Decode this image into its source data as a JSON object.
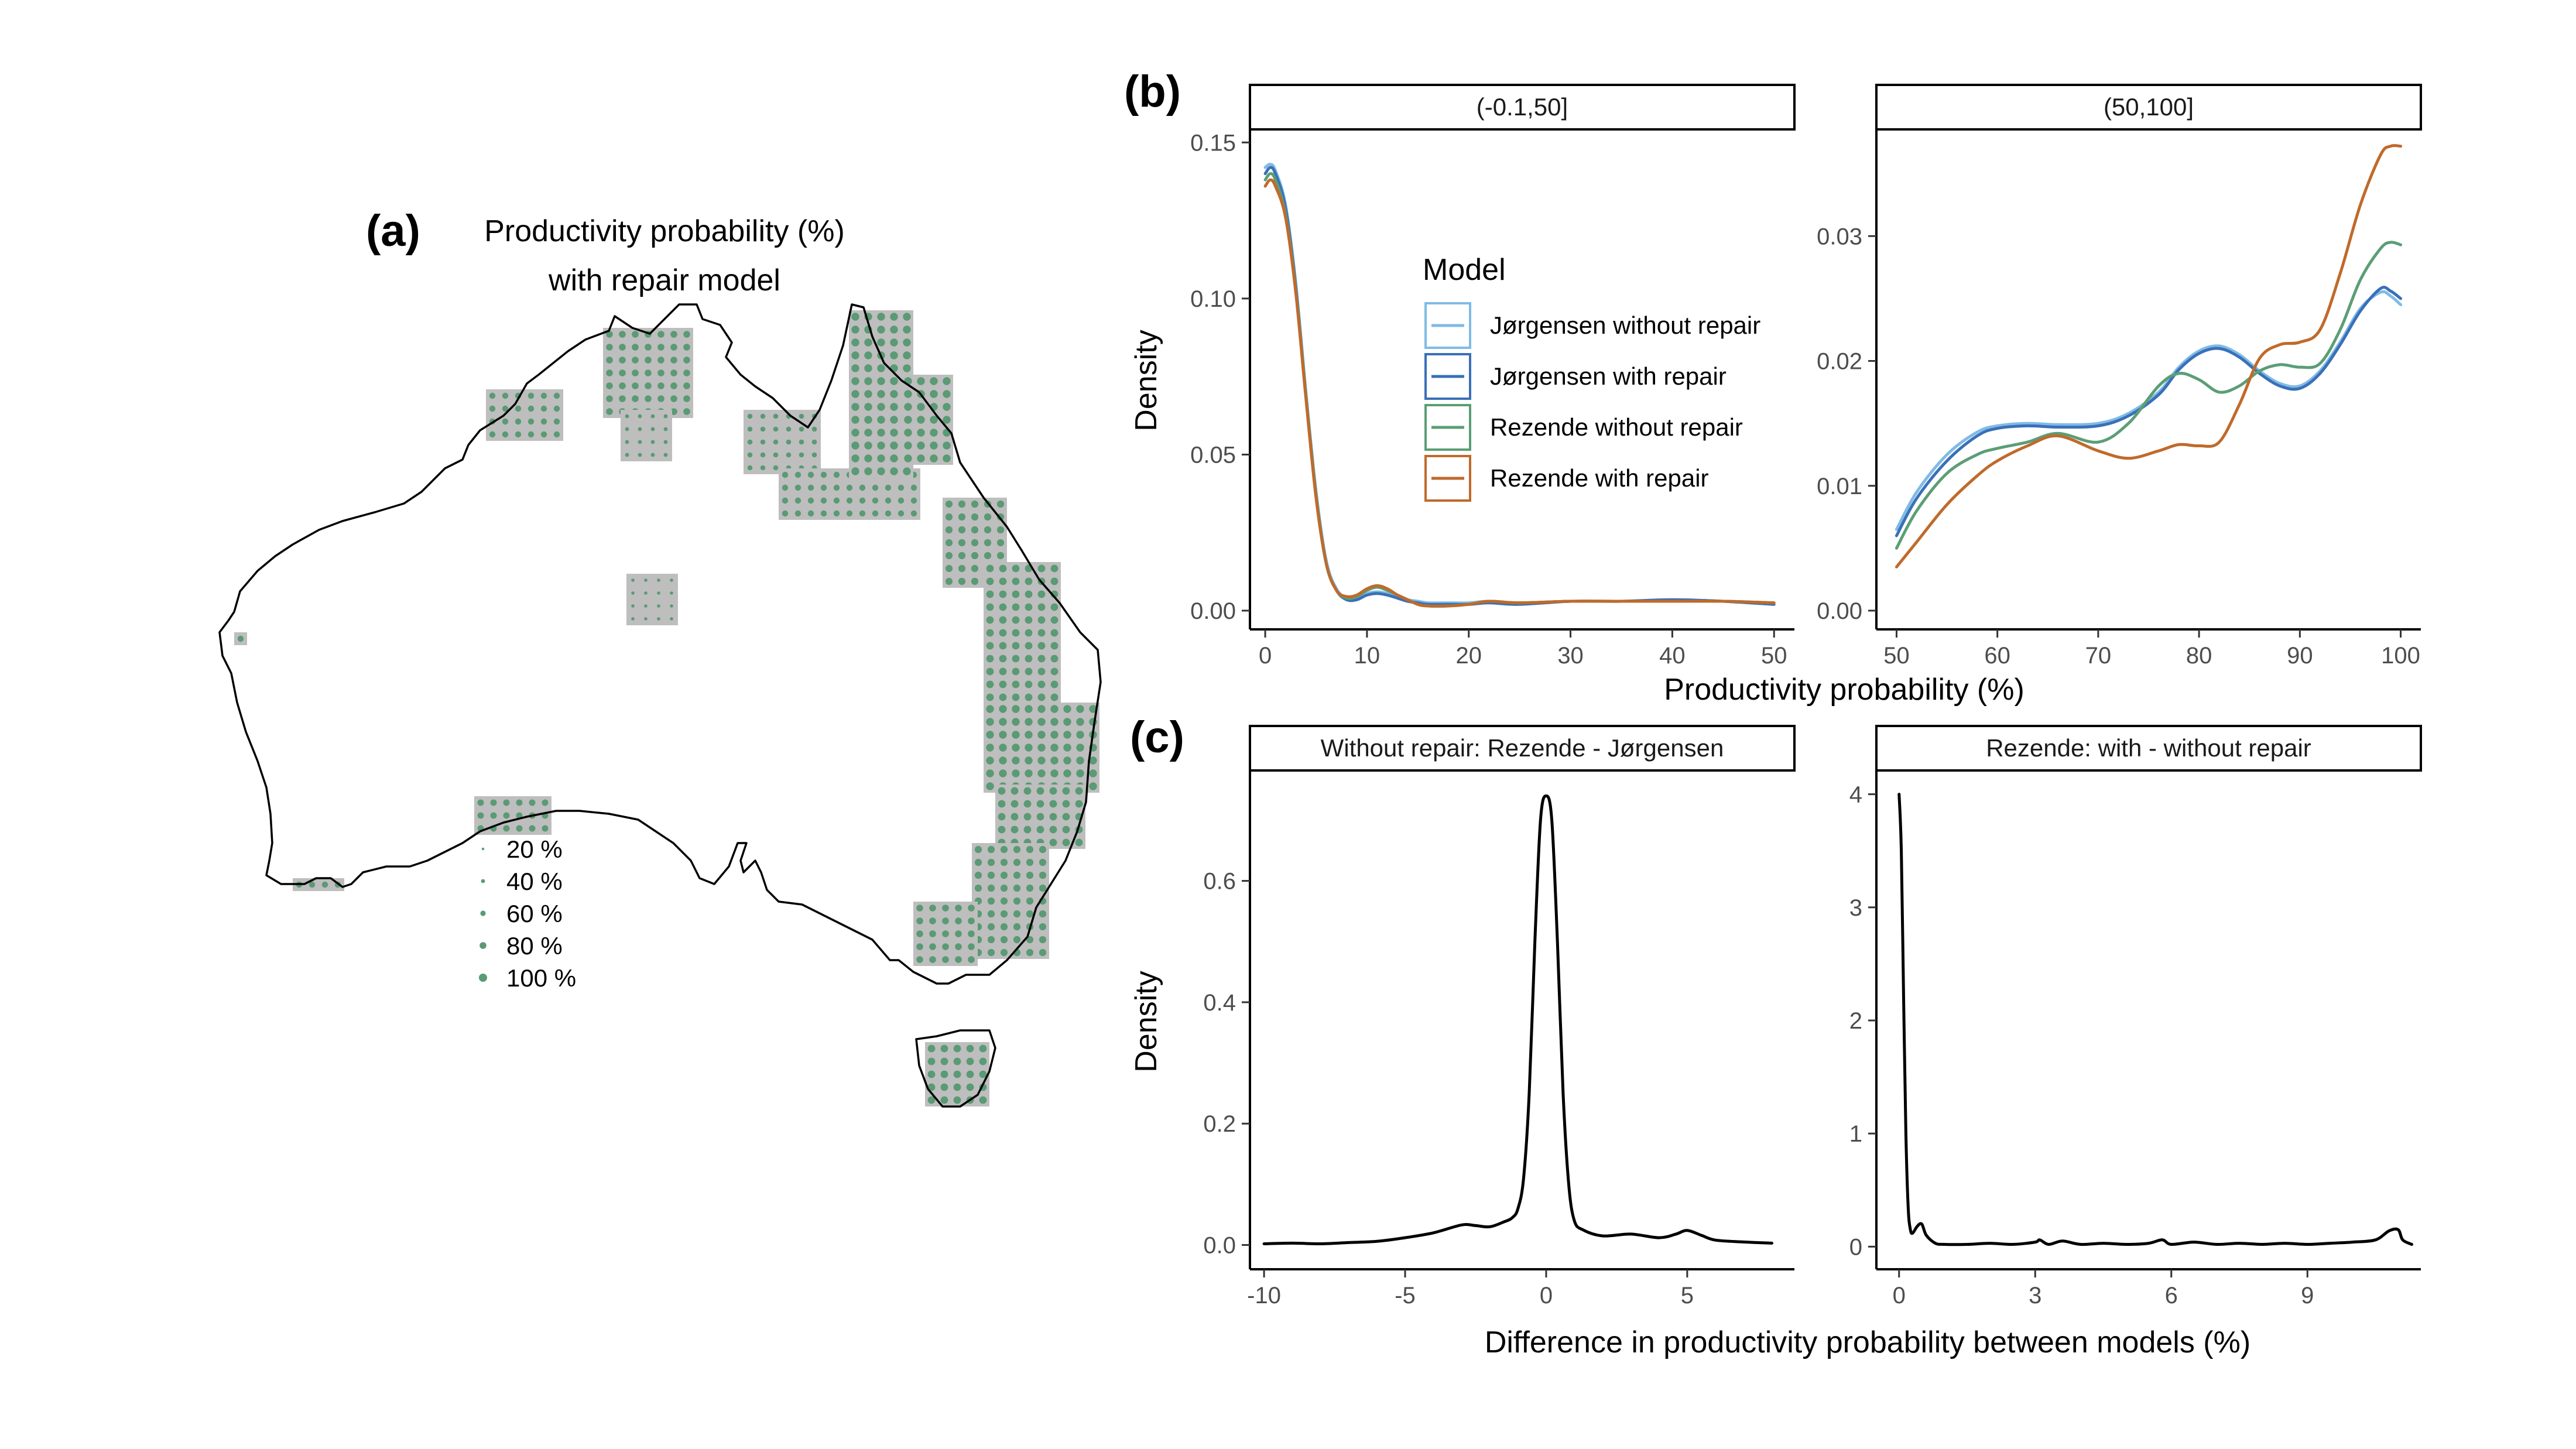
{
  "panel_labels": {
    "a": "(a)",
    "b": "(b)",
    "c": "(c)"
  },
  "map": {
    "title_line1": "Productivity probability (%)",
    "title_line2": "with repair model",
    "legend": [
      {
        "label": "20 %",
        "value": 20
      },
      {
        "label": "40 %",
        "value": 40
      },
      {
        "label": "60 %",
        "value": 60
      },
      {
        "label": "80 %",
        "value": 80
      },
      {
        "label": "100 %",
        "value": 100
      }
    ],
    "colors": {
      "cell": "#bebebe",
      "dot": "#5a9a74",
      "coast": "#000000"
    }
  },
  "chart_data": [
    {
      "id": "b-left",
      "type": "line",
      "strip": "(-0.1,50]",
      "ylabel": "Density",
      "xlim": [
        -1.5,
        52
      ],
      "ylim": [
        -0.006,
        0.154
      ],
      "xticks": [
        0,
        10,
        20,
        30,
        40,
        50
      ],
      "yticks": [
        0.0,
        0.05,
        0.1,
        0.15
      ],
      "ytick_labels": [
        "0.00",
        "0.05",
        "0.10",
        "0.15"
      ],
      "series": [
        {
          "name": "Jørgensen without repair",
          "color": "#7fbbe5",
          "x": [
            0,
            0.5,
            1,
            2,
            3,
            4,
            5,
            6,
            7,
            8,
            9,
            10,
            11,
            12,
            13,
            14,
            15,
            16,
            18,
            20,
            22,
            25,
            30,
            35,
            40,
            45,
            50
          ],
          "y": [
            0.142,
            0.143,
            0.141,
            0.13,
            0.105,
            0.07,
            0.038,
            0.016,
            0.007,
            0.004,
            0.004,
            0.0055,
            0.006,
            0.0055,
            0.0045,
            0.0035,
            0.003,
            0.0025,
            0.0025,
            0.0025,
            0.003,
            0.0025,
            0.003,
            0.003,
            0.0035,
            0.003,
            0.002
          ]
        },
        {
          "name": "Jørgensen with repair",
          "color": "#3a70b8",
          "x": [
            0,
            0.5,
            1,
            2,
            3,
            4,
            5,
            6,
            7,
            8,
            9,
            10,
            11,
            12,
            13,
            14,
            15,
            16,
            18,
            20,
            22,
            25,
            30,
            35,
            40,
            45,
            50
          ],
          "y": [
            0.14,
            0.142,
            0.14,
            0.129,
            0.104,
            0.069,
            0.037,
            0.015,
            0.0065,
            0.0035,
            0.0035,
            0.005,
            0.0055,
            0.005,
            0.004,
            0.003,
            0.0025,
            0.002,
            0.002,
            0.002,
            0.0025,
            0.002,
            0.003,
            0.003,
            0.0035,
            0.003,
            0.002
          ]
        },
        {
          "name": "Rezende without repair",
          "color": "#5b9e75",
          "x": [
            0,
            0.5,
            1,
            2,
            3,
            4,
            5,
            6,
            7,
            8,
            9,
            10,
            11,
            12,
            13,
            14,
            15,
            16,
            18,
            20,
            22,
            25,
            30,
            35,
            40,
            45,
            50
          ],
          "y": [
            0.138,
            0.14,
            0.138,
            0.127,
            0.103,
            0.069,
            0.037,
            0.015,
            0.0065,
            0.004,
            0.0045,
            0.0065,
            0.0075,
            0.0065,
            0.005,
            0.0035,
            0.002,
            0.0015,
            0.0015,
            0.002,
            0.003,
            0.0025,
            0.003,
            0.003,
            0.003,
            0.003,
            0.0025
          ]
        },
        {
          "name": "Rezende with repair",
          "color": "#c06a2b",
          "x": [
            0,
            0.5,
            1,
            2,
            3,
            4,
            5,
            6,
            7,
            8,
            9,
            10,
            11,
            12,
            13,
            14,
            15,
            16,
            18,
            20,
            22,
            25,
            30,
            35,
            40,
            45,
            50
          ],
          "y": [
            0.136,
            0.138,
            0.136,
            0.126,
            0.102,
            0.068,
            0.036,
            0.015,
            0.0065,
            0.0045,
            0.005,
            0.007,
            0.008,
            0.007,
            0.005,
            0.0035,
            0.002,
            0.0015,
            0.0015,
            0.002,
            0.003,
            0.0025,
            0.003,
            0.003,
            0.003,
            0.003,
            0.0025
          ]
        }
      ]
    },
    {
      "id": "b-right",
      "type": "line",
      "strip": "(50,100]",
      "xlim": [
        48,
        102
      ],
      "ylim": [
        -0.0015,
        0.0385
      ],
      "xticks": [
        50,
        60,
        70,
        80,
        90,
        100
      ],
      "yticks": [
        0.0,
        0.01,
        0.02,
        0.03
      ],
      "ytick_labels": [
        "0.00",
        "0.01",
        "0.02",
        "0.03"
      ],
      "series": [
        {
          "name": "Jørgensen without repair",
          "color": "#7fbbe5",
          "x": [
            50,
            52,
            55,
            58,
            60,
            63,
            66,
            70,
            73,
            76,
            78,
            80,
            82,
            84,
            86,
            88,
            90,
            92,
            94,
            96,
            98,
            99,
            100
          ],
          "y": [
            0.0065,
            0.0095,
            0.0125,
            0.0143,
            0.0148,
            0.015,
            0.0149,
            0.015,
            0.0158,
            0.0175,
            0.0195,
            0.0208,
            0.0212,
            0.0205,
            0.0192,
            0.0182,
            0.018,
            0.0192,
            0.0215,
            0.0242,
            0.0255,
            0.0252,
            0.0245
          ]
        },
        {
          "name": "Jørgensen with repair",
          "color": "#3a70b8",
          "x": [
            50,
            52,
            55,
            58,
            60,
            63,
            66,
            70,
            73,
            76,
            78,
            80,
            82,
            84,
            86,
            88,
            90,
            92,
            94,
            96,
            98,
            99,
            100
          ],
          "y": [
            0.006,
            0.009,
            0.012,
            0.014,
            0.0146,
            0.0148,
            0.0147,
            0.0148,
            0.0156,
            0.0173,
            0.0193,
            0.0206,
            0.021,
            0.0203,
            0.019,
            0.018,
            0.0178,
            0.019,
            0.0213,
            0.024,
            0.0258,
            0.0256,
            0.025
          ]
        },
        {
          "name": "Rezende without repair",
          "color": "#5b9e75",
          "x": [
            50,
            52,
            55,
            58,
            60,
            63,
            66,
            70,
            73,
            76,
            78,
            80,
            82,
            84,
            86,
            88,
            90,
            92,
            94,
            96,
            98,
            99,
            100
          ],
          "y": [
            0.005,
            0.008,
            0.011,
            0.0125,
            0.013,
            0.0135,
            0.0142,
            0.0135,
            0.015,
            0.018,
            0.019,
            0.0185,
            0.0175,
            0.018,
            0.0192,
            0.0197,
            0.0195,
            0.0198,
            0.0225,
            0.0265,
            0.029,
            0.0295,
            0.0293
          ]
        },
        {
          "name": "Rezende with repair",
          "color": "#c06a2b",
          "x": [
            50,
            52,
            55,
            58,
            60,
            63,
            66,
            70,
            73,
            76,
            78,
            80,
            82,
            84,
            86,
            88,
            90,
            92,
            94,
            96,
            98,
            99,
            100
          ],
          "y": [
            0.0035,
            0.0055,
            0.0085,
            0.0108,
            0.012,
            0.0132,
            0.014,
            0.0128,
            0.0122,
            0.0128,
            0.0133,
            0.0132,
            0.0135,
            0.0165,
            0.0202,
            0.0213,
            0.0215,
            0.0225,
            0.027,
            0.0325,
            0.0365,
            0.0372,
            0.0372
          ]
        }
      ]
    },
    {
      "id": "c-left",
      "type": "line",
      "strip": "Without repair: Rezende - Jørgensen",
      "ylabel": "Density",
      "xlim": [
        -10.5,
        8.8
      ],
      "ylim": [
        -0.04,
        0.78
      ],
      "xticks": [
        -10,
        -5,
        0,
        5
      ],
      "yticks": [
        0.0,
        0.2,
        0.4,
        0.6
      ],
      "ytick_labels": [
        "0.0",
        "0.2",
        "0.4",
        "0.6"
      ],
      "series": [
        {
          "name": "",
          "color": "#000000",
          "x": [
            -10,
            -9,
            -8,
            -7,
            -6,
            -5,
            -4,
            -3,
            -2.5,
            -2,
            -1.5,
            -1.2,
            -1,
            -0.8,
            -0.6,
            -0.4,
            -0.2,
            0,
            0.2,
            0.4,
            0.6,
            0.8,
            1.0,
            1.3,
            2,
            3,
            4,
            4.6,
            5,
            5.5,
            6,
            7,
            8
          ],
          "y": [
            0.002,
            0.003,
            0.002,
            0.004,
            0.006,
            0.012,
            0.02,
            0.033,
            0.032,
            0.03,
            0.038,
            0.045,
            0.06,
            0.11,
            0.25,
            0.5,
            0.7,
            0.74,
            0.7,
            0.5,
            0.25,
            0.1,
            0.04,
            0.025,
            0.015,
            0.018,
            0.012,
            0.018,
            0.024,
            0.016,
            0.008,
            0.005,
            0.003
          ]
        }
      ]
    },
    {
      "id": "c-right",
      "type": "line",
      "strip": "Rezende: with - without repair",
      "xlim": [
        -0.5,
        11.5
      ],
      "ylim": [
        -0.2,
        4.2
      ],
      "xticks": [
        0,
        3,
        6,
        9
      ],
      "yticks": [
        0,
        1,
        2,
        3,
        4
      ],
      "ytick_labels": [
        "0",
        "1",
        "2",
        "3",
        "4"
      ],
      "series": [
        {
          "name": "",
          "color": "#000000",
          "x": [
            0,
            0.05,
            0.1,
            0.15,
            0.2,
            0.25,
            0.3,
            0.4,
            0.5,
            0.6,
            0.8,
            1.0,
            1.5,
            2,
            2.5,
            3.0,
            3.1,
            3.3,
            3.6,
            4,
            4.5,
            5,
            5.5,
            5.8,
            6.0,
            6.5,
            7,
            7.5,
            8,
            8.5,
            9,
            9.5,
            10,
            10.5,
            10.8,
            11,
            11.1,
            11.3
          ],
          "y": [
            4.0,
            3.5,
            2.2,
            1.0,
            0.35,
            0.15,
            0.12,
            0.18,
            0.2,
            0.1,
            0.03,
            0.02,
            0.02,
            0.03,
            0.02,
            0.04,
            0.06,
            0.02,
            0.05,
            0.02,
            0.03,
            0.02,
            0.03,
            0.06,
            0.02,
            0.04,
            0.02,
            0.03,
            0.02,
            0.03,
            0.02,
            0.03,
            0.04,
            0.06,
            0.14,
            0.15,
            0.06,
            0.02
          ]
        }
      ]
    }
  ],
  "legend": {
    "title": "Model",
    "items": [
      {
        "label": "Jørgensen without repair",
        "color": "#7fbbe5"
      },
      {
        "label": "Jørgensen with repair",
        "color": "#3a70b8"
      },
      {
        "label": "Rezende without repair",
        "color": "#5b9e75"
      },
      {
        "label": "Rezende with repair",
        "color": "#c06a2b"
      }
    ]
  },
  "axis_titles": {
    "b_x": "Productivity probability (%)",
    "c_x": "Difference in productivity probability between models (%)"
  }
}
